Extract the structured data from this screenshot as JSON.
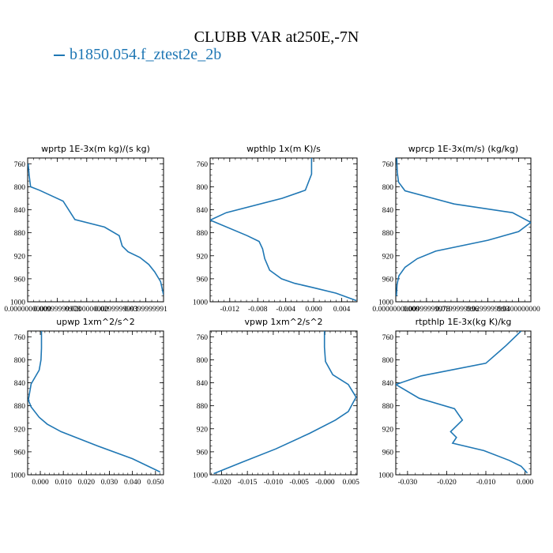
{
  "title": "CLUBB VAR at250E,-7N",
  "legend": {
    "label": "b1850.054.f_ztest2e_2b",
    "color": "#1f77b4"
  },
  "line_color": "#1f77b4",
  "chart_data": [
    {
      "type": "line",
      "title": "wprtp   1E-3x(m kg)/(s kg)",
      "ylim": [
        1000,
        750
      ],
      "yticks": [
        760,
        800,
        840,
        880,
        920,
        960,
        1000
      ],
      "xlim": [
        0.0,
        0.046
      ],
      "xticks": [
        0.0,
        0.01,
        0.02,
        0.03,
        0.04
      ],
      "xtick_labels": [
        "0.00000000000",
        "0.00999999978",
        "0.0200000000",
        "0.0299999993",
        "0.0399999991"
      ],
      "x": [
        0.0002,
        0.0005,
        0.001,
        0.004,
        0.012,
        0.016,
        0.026,
        0.031,
        0.032,
        0.034,
        0.038,
        0.041,
        0.043,
        0.045,
        0.046
      ],
      "y": [
        760,
        780,
        800,
        806,
        825,
        857,
        870,
        885,
        903,
        913,
        923,
        935,
        948,
        965,
        988
      ]
    },
    {
      "type": "line",
      "title": "wpthlp   1x(m K)/s",
      "ylim": [
        1000,
        750
      ],
      "yticks": [
        760,
        800,
        840,
        880,
        920,
        960,
        1000
      ],
      "xlim": [
        -0.0148,
        0.0062
      ],
      "xticks": [
        -0.012,
        -0.008,
        -0.004,
        0.0,
        0.004
      ],
      "xtick_labels": [
        "-0.012",
        "-0.008",
        "-0.004",
        "0.000",
        "0.004"
      ],
      "x": [
        -0.0003,
        -0.0003,
        -0.0012,
        -0.0045,
        -0.0125,
        -0.0148,
        -0.0095,
        -0.0078,
        -0.0073,
        -0.007,
        -0.0063,
        -0.0046,
        -0.0027,
        -0.0002,
        0.0032,
        0.0061
      ],
      "y": [
        750,
        778,
        806,
        820,
        845,
        858,
        885,
        895,
        908,
        925,
        945,
        960,
        968,
        975,
        985,
        998
      ]
    },
    {
      "type": "line",
      "title": "wprcp   1E-3x(m/s) (kg/kg)",
      "ylim": [
        1000,
        750
      ],
      "yticks": [
        760,
        800,
        840,
        880,
        920,
        960,
        1000
      ],
      "xlim": [
        0.0,
        0.044
      ],
      "xticks": [
        0.0,
        0.01,
        0.02,
        0.03,
        0.04
      ],
      "xtick_labels": [
        "0.00000000000",
        "0.00999999978",
        "0.0199999996",
        "0.0299999993",
        "0.0400000000"
      ],
      "x": [
        0.0003,
        0.0005,
        0.0009,
        0.003,
        0.019,
        0.038,
        0.044,
        0.04,
        0.03,
        0.013,
        0.007,
        0.003,
        0.001,
        0.0004,
        0.0002
      ],
      "y": [
        750,
        775,
        792,
        807,
        830,
        845,
        862,
        878,
        893,
        912,
        925,
        940,
        955,
        970,
        990
      ]
    },
    {
      "type": "line",
      "title": "upwp   1xm^2/s^2",
      "ylim": [
        1000,
        750
      ],
      "yticks": [
        760,
        800,
        840,
        880,
        920,
        960,
        1000
      ],
      "xlim": [
        -0.0055,
        0.0535
      ],
      "xticks": [
        0.0,
        0.01,
        0.02,
        0.03,
        0.04,
        0.05
      ],
      "xtick_labels": [
        "0.000",
        "0.010",
        "0.020",
        "0.030",
        "0.040",
        "0.050"
      ],
      "x": [
        0.0005,
        0.0005,
        0.0003,
        -0.0005,
        -0.004,
        -0.0052,
        -0.004,
        -0.0005,
        0.003,
        0.009,
        0.025,
        0.04,
        0.052
      ],
      "y": [
        750,
        780,
        800,
        818,
        842,
        870,
        882,
        900,
        912,
        925,
        950,
        972,
        995
      ]
    },
    {
      "type": "line",
      "title": "vpwp   1xm^2/s^2",
      "ylim": [
        1000,
        750
      ],
      "yticks": [
        760,
        800,
        840,
        880,
        920,
        960,
        1000
      ],
      "xlim": [
        -0.0222,
        0.0062
      ],
      "xticks": [
        -0.02,
        -0.015,
        -0.01,
        -0.005,
        0.0,
        0.005
      ],
      "xtick_labels": [
        "-0.020",
        "-0.015",
        "-0.010",
        "-0.005",
        "-0.000",
        "0.005"
      ],
      "x": [
        -0.0001,
        -0.0001,
        0.0001,
        0.0015,
        0.0045,
        0.006,
        0.0045,
        0.002,
        -0.003,
        -0.0095,
        -0.016,
        -0.0215
      ],
      "y": [
        750,
        778,
        803,
        826,
        843,
        865,
        890,
        905,
        928,
        955,
        978,
        998
      ]
    },
    {
      "type": "line",
      "title": "rtpthlp   1E-3x(kg K)/kg",
      "ylim": [
        1000,
        750
      ],
      "yticks": [
        760,
        800,
        840,
        880,
        920,
        960,
        1000
      ],
      "xlim": [
        -0.033,
        0.0015
      ],
      "xticks": [
        -0.03,
        -0.02,
        -0.01,
        0.0
      ],
      "xtick_labels": [
        "-0.030",
        "-0.020",
        "-0.010",
        "0.000"
      ],
      "x": [
        -0.001,
        -0.0048,
        -0.01,
        -0.0265,
        -0.033,
        -0.027,
        -0.018,
        -0.016,
        -0.019,
        -0.0175,
        -0.0185,
        -0.0105,
        -0.004,
        -0.001,
        0.0006
      ],
      "y": [
        750,
        775,
        806,
        828,
        843,
        867,
        885,
        905,
        925,
        935,
        945,
        958,
        975,
        985,
        997
      ]
    }
  ]
}
